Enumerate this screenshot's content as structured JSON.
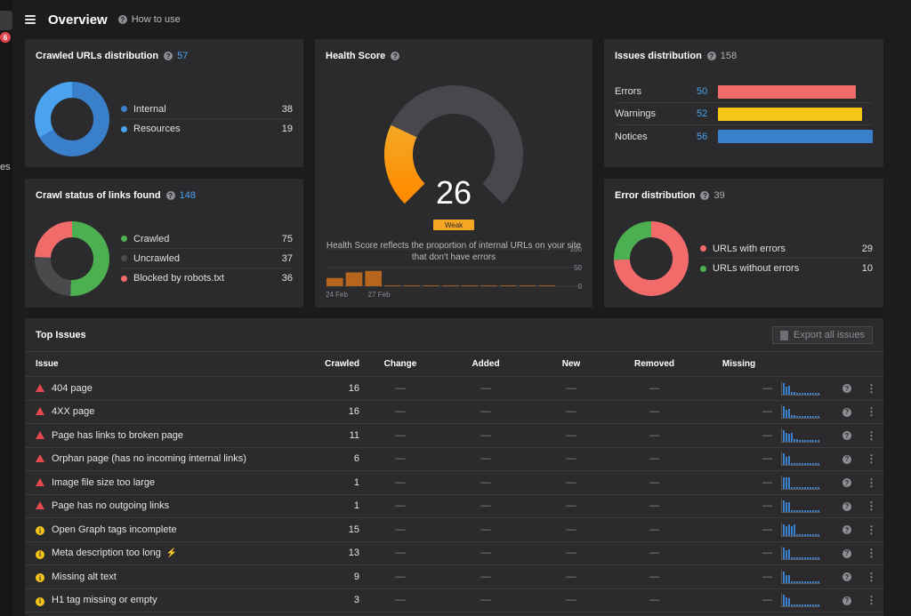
{
  "left_strip": {
    "badge": "6",
    "partial_text": "es"
  },
  "header": {
    "title": "Overview",
    "help": "How to use"
  },
  "crawled_urls": {
    "title": "Crawled URLs distribution",
    "count": "57",
    "items": [
      {
        "label": "Internal",
        "value": 38,
        "color": "#3a7fc9"
      },
      {
        "label": "Resources",
        "value": 19,
        "color": "#4ba3f0"
      }
    ]
  },
  "crawl_status": {
    "title": "Crawl status of links found",
    "count": "148",
    "items": [
      {
        "label": "Crawled",
        "value": 75,
        "color": "#4caf50"
      },
      {
        "label": "Uncrawled",
        "value": 37,
        "color": "#4a4a4d"
      },
      {
        "label": "Blocked by robots.txt",
        "value": 36,
        "color": "#f26b6b"
      }
    ]
  },
  "health": {
    "title": "Health Score",
    "score": 26,
    "grade": "Weak",
    "description": "Health Score reflects the proportion of internal URLs on your site that don't have errors",
    "gauge_color_start": "#ff8c00",
    "gauge_color_end": "#f5a623",
    "history": {
      "y_ticks": [
        "100",
        "50",
        "0"
      ],
      "x_labels": [
        "24 Feb",
        "27 Feb"
      ],
      "values": [
        22,
        37,
        41,
        2,
        2,
        2,
        2,
        2,
        2,
        2,
        2,
        2
      ]
    }
  },
  "issues_dist": {
    "title": "Issues distribution",
    "count": "158",
    "items": [
      {
        "label": "Errors",
        "value": 50,
        "color": "#f26b6b"
      },
      {
        "label": "Warnings",
        "value": 52,
        "color": "#f5c518"
      },
      {
        "label": "Notices",
        "value": 56,
        "color": "#3a7fc9"
      }
    ]
  },
  "error_dist": {
    "title": "Error distribution",
    "count": "39",
    "items": [
      {
        "label": "URLs with errors",
        "value": 29,
        "color": "#f26b6b"
      },
      {
        "label": "URLs without errors",
        "value": 10,
        "color": "#4caf50"
      }
    ]
  },
  "top_issues": {
    "title": "Top Issues",
    "export_label": "Export all issues",
    "columns": [
      "Issue",
      "Crawled",
      "Change",
      "Added",
      "New",
      "Removed",
      "Missing"
    ],
    "dash": "—",
    "rows": [
      {
        "type": "error",
        "name": "404 page",
        "crawled": "16",
        "spark": [
          13,
          9,
          10,
          3,
          3,
          2,
          2,
          2,
          2,
          2,
          2,
          2,
          2,
          2
        ]
      },
      {
        "type": "error",
        "name": "4XX page",
        "crawled": "16",
        "spark": [
          13,
          9,
          10,
          3,
          3,
          2,
          2,
          2,
          2,
          2,
          2,
          2,
          2,
          2
        ]
      },
      {
        "type": "error",
        "name": "Page has links to broken page",
        "crawled": "11",
        "spark": [
          13,
          10,
          9,
          10,
          3,
          3,
          2,
          2,
          2,
          2,
          2,
          2,
          2,
          2
        ]
      },
      {
        "type": "error",
        "name": "Orphan page (has no incoming internal links)",
        "crawled": "6",
        "spark": [
          13,
          9,
          10,
          2,
          2,
          2,
          2,
          2,
          2,
          2,
          2,
          2,
          2,
          2
        ]
      },
      {
        "type": "error",
        "name": "Image file size too large",
        "crawled": "1",
        "spark": [
          13,
          13,
          13,
          2,
          2,
          2,
          2,
          2,
          2,
          2,
          2,
          2,
          2,
          2
        ]
      },
      {
        "type": "error",
        "name": "Page has no outgoing links",
        "crawled": "1",
        "spark": [
          13,
          11,
          11,
          2,
          2,
          2,
          2,
          2,
          2,
          2,
          2,
          2,
          2,
          2
        ]
      },
      {
        "type": "warning",
        "name": "Open Graph tags incomplete",
        "crawled": "15",
        "spark": [
          13,
          11,
          13,
          11,
          13,
          2,
          2,
          2,
          2,
          2,
          2,
          2,
          2,
          2
        ]
      },
      {
        "type": "warning",
        "name": "Meta description too long",
        "crawled": "13",
        "bolt": "⚡",
        "spark": [
          13,
          10,
          11,
          2,
          2,
          2,
          2,
          2,
          2,
          2,
          2,
          2,
          2,
          2
        ]
      },
      {
        "type": "warning",
        "name": "Missing alt text",
        "crawled": "9",
        "spark": [
          13,
          9,
          9,
          2,
          2,
          2,
          2,
          2,
          2,
          2,
          2,
          2,
          2,
          2
        ]
      },
      {
        "type": "warning",
        "name": "H1 tag missing or empty",
        "crawled": "3",
        "spark": [
          13,
          10,
          9,
          2,
          2,
          2,
          2,
          2,
          2,
          2,
          2,
          2,
          2,
          2
        ]
      }
    ]
  }
}
